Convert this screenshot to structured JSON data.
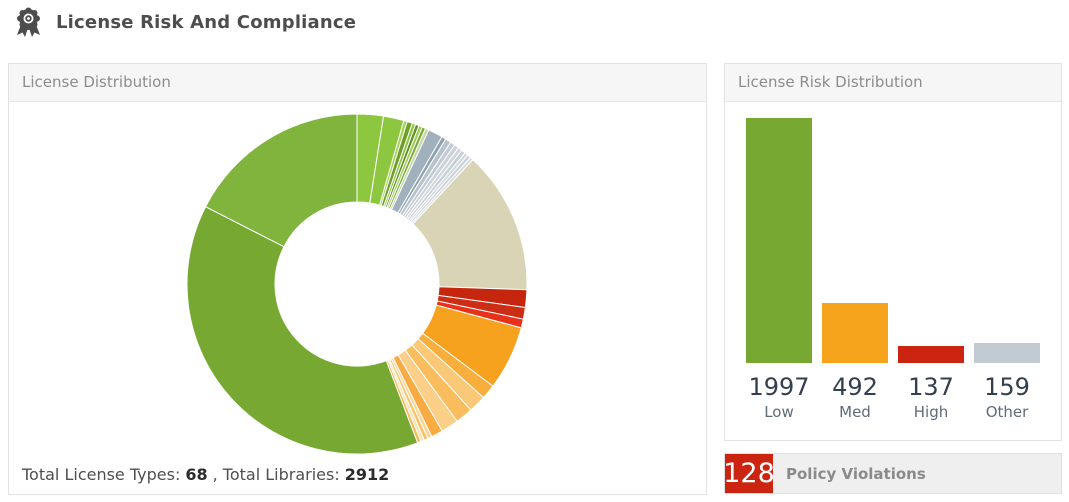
{
  "page": {
    "title": "License Risk And Compliance",
    "header_icon": "award-ribbon"
  },
  "left_panel": {
    "title": "License Distribution",
    "totals": {
      "label_types": "Total License Types:",
      "types_value": "68",
      "label_libraries": ", Total Libraries:",
      "libraries_value": "2912"
    }
  },
  "right_panel": {
    "title": "License Risk Distribution",
    "policy": {
      "count": "128",
      "label": "Policy Violations",
      "color": "#cb2512"
    }
  },
  "chart_data": [
    {
      "id": "license_distribution_donut",
      "type": "pie",
      "subtype": "donut",
      "title": "License Distribution",
      "inner_radius_ratio": 0.48,
      "start": "top",
      "direction": "clockwise",
      "total_license_types": 68,
      "total_libraries": 2912,
      "slices": [
        {
          "color": "#8dc63f",
          "value": 9
        },
        {
          "color": "#8dc63f",
          "value": 7
        },
        {
          "color": "#a5d455",
          "value": 1.2
        },
        {
          "color": "#6f9f28",
          "value": 1.8
        },
        {
          "color": "#8dc63f",
          "value": 1.2
        },
        {
          "color": "#5f8f20",
          "value": 1.2
        },
        {
          "color": "#9fce58",
          "value": 1.2
        },
        {
          "color": "#78ab2e",
          "value": 1.2
        },
        {
          "color": "#c6d7a6",
          "value": 1.2
        },
        {
          "color": "#a0b0bc",
          "value": 5
        },
        {
          "color": "#8fa2af",
          "value": 1.5
        },
        {
          "color": "#b7c2cb",
          "value": 2
        },
        {
          "color": "#c2cbd3",
          "value": 1.6
        },
        {
          "color": "#cbd3d9",
          "value": 1.6
        },
        {
          "color": "#d0d6db",
          "value": 1.4
        },
        {
          "color": "#c6cfd6",
          "value": 1.4
        },
        {
          "color": "#d3d9de",
          "value": 1.2
        },
        {
          "color": "#c9d2d8",
          "value": 1.2
        },
        {
          "color": "#d6dbdf",
          "value": 1.1
        },
        {
          "color": "#d9d4b6",
          "value": 49
        },
        {
          "color": "#c6250e",
          "value": 6
        },
        {
          "color": "#cc2d14",
          "value": 4
        },
        {
          "color": "#e8311a",
          "value": 3
        },
        {
          "color": "#f6a21f",
          "value": 22
        },
        {
          "color": "#f7ae3c",
          "value": 5
        },
        {
          "color": "#fac977",
          "value": 6
        },
        {
          "color": "#f9bd5e",
          "value": 6
        },
        {
          "color": "#fbcf88",
          "value": 6
        },
        {
          "color": "#f8ab42",
          "value": 4
        },
        {
          "color": "#fdd698",
          "value": 1.4
        },
        {
          "color": "#f9c36c",
          "value": 1.4
        },
        {
          "color": "#fee3b4",
          "value": 1.2
        },
        {
          "color": "#f8b755",
          "value": 1.2
        },
        {
          "color": "#76a832",
          "value": 138
        },
        {
          "color": "#80b43c",
          "value": 63
        }
      ]
    },
    {
      "id": "license_risk_bars",
      "type": "bar",
      "title": "License Risk Distribution",
      "categories": [
        "Low",
        "Med",
        "High",
        "Other"
      ],
      "values": [
        1997,
        492,
        137,
        159
      ],
      "colors": [
        "#76a832",
        "#f5a41c",
        "#cb2512",
        "#c2cbd2"
      ],
      "ylim": [
        0,
        1997
      ],
      "grid": false,
      "value_label_position": "below-bar"
    }
  ]
}
